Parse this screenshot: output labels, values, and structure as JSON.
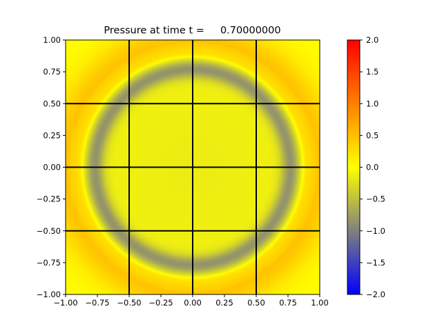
{
  "chart_data": {
    "type": "heatmap",
    "title": "Pressure at time t =     0.70000000",
    "xlabel": "",
    "ylabel": "",
    "xlim": [
      -1.0,
      1.0
    ],
    "ylim": [
      -1.0,
      1.0
    ],
    "x_ticks": [
      -1.0,
      -0.75,
      -0.5,
      -0.25,
      0.0,
      0.25,
      0.5,
      0.75,
      1.0
    ],
    "x_tick_labels": [
      "−1.00",
      "−0.75",
      "−0.50",
      "−0.25",
      "0.00",
      "0.25",
      "0.50",
      "0.75",
      "1.00"
    ],
    "y_ticks": [
      -1.0,
      -0.75,
      -0.5,
      -0.25,
      0.0,
      0.25,
      0.5,
      0.75,
      1.0
    ],
    "y_tick_labels": [
      "−1.00",
      "−0.75",
      "−0.50",
      "−0.25",
      "0.00",
      "0.25",
      "0.50",
      "0.75",
      "1.00"
    ],
    "grid_lines": [
      -0.5,
      0.0,
      0.5
    ],
    "grid_color": "#000000",
    "field": {
      "description_values": "radial pressure wave",
      "center": [
        0.0,
        0.0
      ],
      "ring_radius": 0.77,
      "ring_min_value": -0.85,
      "inner_value": -0.15,
      "outer_peak_value": 0.45,
      "outer_peak_radius": 0.98
    },
    "colorbar": {
      "range": [
        -2.0,
        2.0
      ],
      "ticks": [
        2.0,
        1.5,
        1.0,
        0.5,
        0.0,
        -0.5,
        -1.0,
        -1.5,
        -2.0
      ],
      "tick_labels": [
        "2.0",
        "1.5",
        "1.0",
        "0.5",
        "0.0",
        "−0.5",
        "−1.0",
        "−1.5",
        "−2.0"
      ],
      "stops": [
        {
          "value": -2.0,
          "color": "#0000ff"
        },
        {
          "value": -1.0,
          "color": "#808080"
        },
        {
          "value": 0.0,
          "color": "#ffff00"
        },
        {
          "value": 0.5,
          "color": "#ffc000"
        },
        {
          "value": 2.0,
          "color": "#ff0000"
        }
      ]
    }
  }
}
